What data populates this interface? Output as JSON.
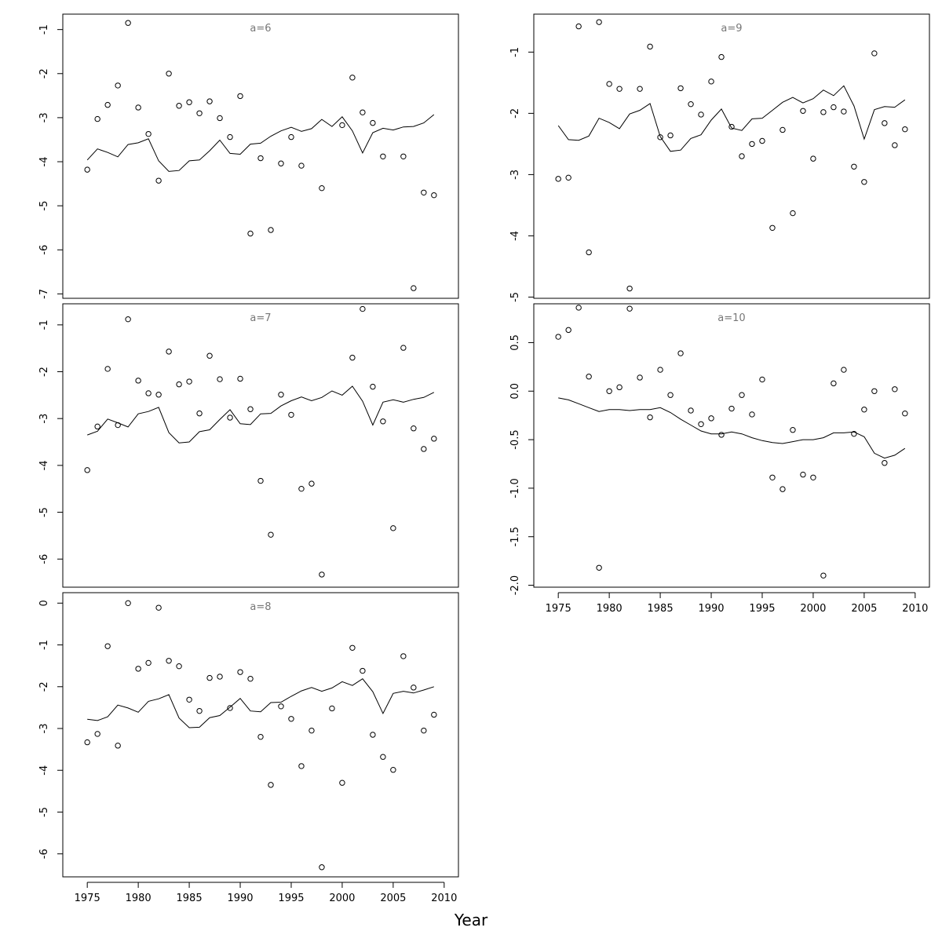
{
  "figure": {
    "xlabel": "Year"
  },
  "chart_data": [
    {
      "type": "scatter",
      "title": "a=6",
      "xlim": [
        1972.6,
        2011.4
      ],
      "ylim": [
        -7.1,
        -0.65
      ],
      "yticks": [
        -7,
        -6,
        -5,
        -4,
        -3,
        -2,
        -1
      ],
      "xticks": [],
      "x": [
        1975,
        1976,
        1977,
        1978,
        1979,
        1980,
        1981,
        1982,
        1983,
        1984,
        1985,
        1986,
        1987,
        1988,
        1989,
        1990,
        1991,
        1992,
        1993,
        1994,
        1995,
        1996,
        1997,
        1998,
        1999,
        2000,
        2001,
        2002,
        2003,
        2004,
        2005,
        2006,
        2007,
        2008,
        2009
      ],
      "series": [
        {
          "values": [
            -4.18,
            -3.03,
            -2.71,
            -2.27,
            -0.85,
            -2.77,
            -3.37,
            -4.43,
            -2.0,
            -2.73,
            -2.65,
            -2.9,
            -2.63,
            -3.01,
            -3.44,
            -2.51,
            -5.63,
            -3.92,
            -5.55,
            -4.04,
            -3.44,
            -4.09,
            null,
            -4.6,
            null,
            -3.17,
            -2.09,
            -2.88,
            -3.12,
            -3.88,
            null,
            -3.88,
            -6.87,
            -4.7,
            -4.76
          ]
        },
        {
          "values": [
            -3.96,
            -3.71,
            -3.79,
            -3.89,
            -3.61,
            -3.57,
            -3.48,
            -3.98,
            -4.22,
            -4.2,
            -3.98,
            -3.96,
            -3.75,
            -3.51,
            -3.81,
            -3.83,
            -3.6,
            -3.58,
            -3.42,
            -3.3,
            -3.22,
            -3.31,
            -3.25,
            -3.04,
            -3.2,
            -2.98,
            -3.3,
            -3.8,
            -3.34,
            -3.24,
            -3.28,
            -3.21,
            -3.2,
            -3.12,
            -2.93
          ]
        }
      ]
    },
    {
      "type": "scatter",
      "title": "a=7",
      "xlim": [
        1972.6,
        2011.4
      ],
      "ylim": [
        -6.6,
        -0.55
      ],
      "yticks": [
        -6,
        -5,
        -4,
        -3,
        -2,
        -1
      ],
      "xticks": [],
      "x": [
        1975,
        1976,
        1977,
        1978,
        1979,
        1980,
        1981,
        1982,
        1983,
        1984,
        1985,
        1986,
        1987,
        1988,
        1989,
        1990,
        1991,
        1992,
        1993,
        1994,
        1995,
        1996,
        1997,
        1998,
        1999,
        2000,
        2001,
        2002,
        2003,
        2004,
        2005,
        2006,
        2007,
        2008,
        2009
      ],
      "series": [
        {
          "values": [
            -4.1,
            -3.17,
            -1.94,
            -3.14,
            -0.88,
            -2.19,
            -2.46,
            -2.49,
            -1.57,
            -2.27,
            -2.21,
            -2.89,
            -1.66,
            -2.16,
            -2.98,
            -2.15,
            -2.8,
            -4.33,
            -5.48,
            -2.49,
            -2.92,
            -4.5,
            -4.39,
            -6.33,
            null,
            null,
            -1.7,
            -0.66,
            -2.32,
            -3.06,
            -5.34,
            -1.49,
            -3.21,
            -3.65,
            -3.43
          ]
        },
        {
          "values": [
            -3.35,
            -3.27,
            -3.01,
            -3.09,
            -3.18,
            -2.9,
            -2.85,
            -2.76,
            -3.3,
            -3.52,
            -3.5,
            -3.28,
            -3.24,
            -3.02,
            -2.81,
            -3.11,
            -3.13,
            -2.9,
            -2.89,
            -2.73,
            -2.62,
            -2.54,
            -2.62,
            -2.55,
            -2.41,
            -2.5,
            -2.31,
            -2.63,
            -3.14,
            -2.65,
            -2.6,
            -2.65,
            -2.59,
            -2.55,
            -2.44
          ]
        }
      ]
    },
    {
      "type": "scatter",
      "title": "a=8",
      "xlim": [
        1972.6,
        2011.4
      ],
      "ylim": [
        -6.55,
        0.25
      ],
      "yticks": [
        -6,
        -5,
        -4,
        -3,
        -2,
        -1,
        0
      ],
      "xticks": [
        1975,
        1980,
        1985,
        1990,
        1995,
        2000,
        2005,
        2010
      ],
      "x": [
        1975,
        1976,
        1977,
        1978,
        1979,
        1980,
        1981,
        1982,
        1983,
        1984,
        1985,
        1986,
        1987,
        1988,
        1989,
        1990,
        1991,
        1992,
        1993,
        1994,
        1995,
        1996,
        1997,
        1998,
        1999,
        2000,
        2001,
        2002,
        2003,
        2004,
        2005,
        2006,
        2007,
        2008,
        2009
      ],
      "series": [
        {
          "values": [
            -3.33,
            -3.13,
            -1.03,
            -3.41,
            0.0,
            -1.57,
            -1.43,
            -0.11,
            -1.38,
            -1.51,
            -2.31,
            -2.58,
            -1.79,
            -1.76,
            -2.51,
            -1.65,
            -1.81,
            -3.2,
            -4.35,
            -2.47,
            -2.77,
            -3.9,
            -3.05,
            -6.32,
            -2.52,
            -4.3,
            -1.07,
            -1.62,
            -3.15,
            -3.68,
            -3.99,
            -1.27,
            -2.02,
            -3.05,
            -2.67
          ]
        },
        {
          "values": [
            -2.78,
            -2.81,
            -2.72,
            -2.44,
            -2.51,
            -2.61,
            -2.35,
            -2.29,
            -2.19,
            -2.75,
            -2.98,
            -2.97,
            -2.74,
            -2.69,
            -2.49,
            -2.28,
            -2.58,
            -2.6,
            -2.38,
            -2.37,
            -2.23,
            -2.1,
            -2.02,
            -2.11,
            -2.03,
            -1.88,
            -1.97,
            -1.81,
            -2.12,
            -2.64,
            -2.16,
            -2.11,
            -2.15,
            -2.08,
            -2.0
          ]
        }
      ]
    },
    {
      "type": "scatter",
      "title": "a=9",
      "xlim": [
        1972.6,
        2011.4
      ],
      "ylim": [
        -5.02,
        -0.38
      ],
      "yticks": [
        -5,
        -4,
        -3,
        -2,
        -1
      ],
      "xticks": [],
      "x": [
        1975,
        1976,
        1977,
        1978,
        1979,
        1980,
        1981,
        1982,
        1983,
        1984,
        1985,
        1986,
        1987,
        1988,
        1989,
        1990,
        1991,
        1992,
        1993,
        1994,
        1995,
        1996,
        1997,
        1998,
        1999,
        2000,
        2001,
        2002,
        2003,
        2004,
        2005,
        2006,
        2007,
        2008,
        2009
      ],
      "series": [
        {
          "values": [
            -3.07,
            -3.05,
            -0.58,
            -4.27,
            -0.51,
            -1.52,
            -1.6,
            -4.86,
            -1.6,
            -0.91,
            -2.39,
            -2.36,
            -1.59,
            -1.85,
            -2.02,
            -1.48,
            -1.08,
            -2.22,
            -2.7,
            -2.5,
            -2.45,
            -3.87,
            -2.27,
            -3.63,
            -1.96,
            -2.74,
            -1.98,
            -1.9,
            -1.97,
            -2.87,
            -3.12,
            -1.02,
            -2.16,
            -2.52,
            -2.26
          ]
        },
        {
          "values": [
            -2.2,
            -2.43,
            -2.44,
            -2.37,
            -2.08,
            -2.15,
            -2.25,
            -2.01,
            -1.95,
            -1.84,
            -2.38,
            -2.62,
            -2.6,
            -2.41,
            -2.35,
            -2.11,
            -1.93,
            -2.24,
            -2.28,
            -2.09,
            -2.08,
            -1.95,
            -1.82,
            -1.74,
            -1.83,
            -1.76,
            -1.62,
            -1.71,
            -1.55,
            -1.88,
            -2.42,
            -1.94,
            -1.89,
            -1.9,
            -1.78
          ]
        }
      ]
    },
    {
      "type": "scatter",
      "title": "a=10",
      "xlim": [
        1972.6,
        2011.4
      ],
      "ylim": [
        -2.02,
        0.9
      ],
      "yticks": [
        -2.0,
        -1.5,
        -1.0,
        -0.5,
        0.0,
        0.5
      ],
      "yticklabels": [
        "-2.0",
        "-1.5",
        "-1.0",
        "-0.5",
        "0.0",
        "0.5"
      ],
      "xticks": [
        1975,
        1980,
        1985,
        1990,
        1995,
        2000,
        2005,
        2010
      ],
      "x": [
        1975,
        1976,
        1977,
        1978,
        1979,
        1980,
        1981,
        1982,
        1983,
        1984,
        1985,
        1986,
        1987,
        1988,
        1989,
        1990,
        1991,
        1992,
        1993,
        1994,
        1995,
        1996,
        1997,
        1998,
        1999,
        2000,
        2001,
        2002,
        2003,
        2004,
        2005,
        2006,
        2007,
        2008,
        2009
      ],
      "series": [
        {
          "values": [
            0.56,
            0.63,
            0.86,
            0.15,
            -1.82,
            0.0,
            0.04,
            0.85,
            0.14,
            -0.27,
            0.22,
            -0.04,
            0.39,
            -0.2,
            -0.34,
            -0.28,
            -0.45,
            -0.18,
            -0.04,
            -0.24,
            0.12,
            -0.89,
            -1.01,
            -0.4,
            -0.86,
            -0.89,
            -1.9,
            0.08,
            0.22,
            -0.44,
            -0.19,
            0.0,
            -0.74,
            0.02,
            -0.23
          ]
        },
        {
          "values": [
            -0.07,
            -0.09,
            -0.13,
            -0.17,
            -0.21,
            -0.19,
            -0.19,
            -0.2,
            -0.19,
            -0.19,
            -0.17,
            -0.22,
            -0.29,
            -0.35,
            -0.41,
            -0.44,
            -0.44,
            -0.42,
            -0.44,
            -0.48,
            -0.51,
            -0.53,
            -0.54,
            -0.52,
            -0.5,
            -0.5,
            -0.48,
            -0.43,
            -0.43,
            -0.42,
            -0.47,
            -0.64,
            -0.69,
            -0.66,
            -0.59
          ]
        }
      ]
    }
  ]
}
